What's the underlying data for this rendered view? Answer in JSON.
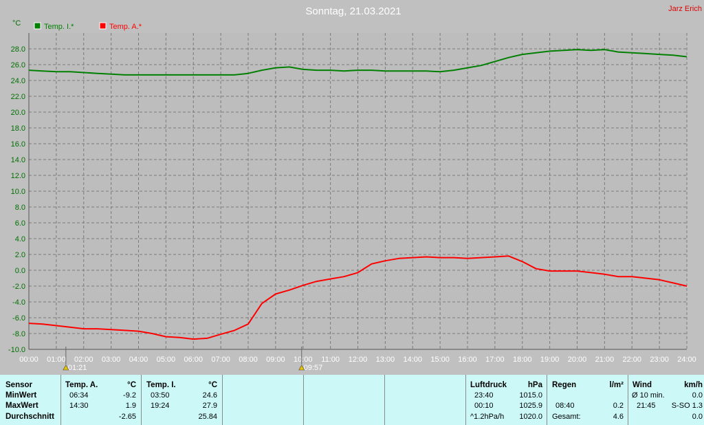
{
  "chart_data": {
    "type": "line",
    "title": "Sonntag, 21.03.2021",
    "author": "Jarz Erich",
    "ylabel": "°C",
    "ylim": [
      -10,
      30
    ],
    "yticks": [
      "28.0",
      "26.0",
      "24.0",
      "22.0",
      "20.0",
      "18.0",
      "16.0",
      "14.0",
      "12.0",
      "10.0",
      "8.0",
      "6.0",
      "4.0",
      "2.0",
      "0.0",
      "-2.0",
      "-4.0",
      "-6.0",
      "-8.0",
      "-10.0"
    ],
    "xlim": [
      0,
      24
    ],
    "xticks": [
      "00:00",
      "01:00",
      "02:00",
      "03:00",
      "04:00",
      "05:00",
      "06:00",
      "07:00",
      "08:00",
      "09:00",
      "10:00",
      "11:00",
      "12:00",
      "13:00",
      "14:00",
      "15:00",
      "16:00",
      "17:00",
      "18:00",
      "19:00",
      "20:00",
      "21:00",
      "22:00",
      "23:00",
      "24:00"
    ],
    "grid": true,
    "legend": "top-left",
    "markers": [
      {
        "time": 1.35,
        "label": "01:21"
      },
      {
        "time": 9.95,
        "label": "09:57"
      }
    ],
    "series": [
      {
        "name": "Temp. I.*",
        "color": "#008000",
        "x": [
          0,
          0.5,
          1,
          1.5,
          2,
          2.5,
          3,
          3.5,
          4,
          4.5,
          5,
          5.5,
          6,
          6.5,
          7,
          7.5,
          8,
          8.5,
          9,
          9.5,
          10,
          10.5,
          11,
          11.5,
          12,
          12.5,
          13,
          13.5,
          14,
          14.5,
          15,
          15.5,
          16,
          16.5,
          17,
          17.5,
          18,
          18.5,
          19,
          19.5,
          20,
          20.5,
          21,
          21.5,
          22,
          22.5,
          23,
          23.5,
          24
        ],
        "values": [
          25.3,
          25.2,
          25.1,
          25.1,
          25.0,
          24.9,
          24.8,
          24.7,
          24.7,
          24.7,
          24.7,
          24.7,
          24.7,
          24.7,
          24.7,
          24.7,
          24.9,
          25.3,
          25.6,
          25.7,
          25.4,
          25.3,
          25.3,
          25.2,
          25.3,
          25.3,
          25.2,
          25.2,
          25.2,
          25.2,
          25.1,
          25.3,
          25.6,
          25.9,
          26.4,
          26.9,
          27.3,
          27.5,
          27.7,
          27.8,
          27.9,
          27.8,
          27.9,
          27.6,
          27.5,
          27.4,
          27.3,
          27.2,
          27.0
        ]
      },
      {
        "name": "Temp. A.*",
        "color": "#ff0000",
        "x": [
          0,
          0.5,
          1,
          1.5,
          2,
          2.5,
          3,
          3.5,
          4,
          4.5,
          5,
          5.5,
          6,
          6.5,
          7,
          7.5,
          8,
          8.5,
          9,
          9.5,
          10,
          10.5,
          11,
          11.5,
          12,
          12.5,
          13,
          13.5,
          14,
          14.5,
          15,
          15.5,
          16,
          16.5,
          17,
          17.5,
          18,
          18.5,
          19,
          19.5,
          20,
          20.5,
          21,
          21.5,
          22,
          22.5,
          23,
          23.5,
          24
        ],
        "values": [
          -6.7,
          -6.8,
          -7.0,
          -7.2,
          -7.4,
          -7.4,
          -7.5,
          -7.6,
          -7.7,
          -8.0,
          -8.4,
          -8.5,
          -8.7,
          -8.6,
          -8.1,
          -7.6,
          -6.8,
          -4.2,
          -3.0,
          -2.5,
          -1.9,
          -1.4,
          -1.1,
          -0.8,
          -0.3,
          0.8,
          1.2,
          1.5,
          1.6,
          1.7,
          1.6,
          1.6,
          1.5,
          1.6,
          1.7,
          1.8,
          1.1,
          0.2,
          -0.1,
          -0.1,
          -0.1,
          -0.3,
          -0.5,
          -0.8,
          -0.8,
          -1.0,
          -1.2,
          -1.6,
          -2.0
        ]
      }
    ]
  },
  "table": {
    "headers": {
      "sensor": "Sensor",
      "tempA": "Temp. A.",
      "tempA_unit": "°C",
      "tempI": "Temp. I.",
      "tempI_unit": "°C",
      "pressure": "Luftdruck",
      "pressure_unit": "hPa",
      "rain": "Regen",
      "rain_unit": "l/m²",
      "wind": "Wind",
      "wind_unit": "km/h"
    },
    "rows": [
      {
        "label": "MinWert",
        "tA_time": "06:34",
        "tA_val": "-9.2",
        "tI_time": "03:50",
        "tI_val": "24.6",
        "p_time": "23:40",
        "p_val": "1015.0",
        "r_time": "",
        "r_val": "",
        "w_label": "Ø 10 min.",
        "w_val": "0.0"
      },
      {
        "label": "MaxWert",
        "tA_time": "14:30",
        "tA_val": "1.9",
        "tI_time": "19:24",
        "tI_val": "27.9",
        "p_time": "00:10",
        "p_val": "1025.9",
        "r_time": "08:40",
        "r_val": "0.2",
        "w_label": "21:45",
        "w_val": "S-SO 1.3"
      },
      {
        "label": "Durchschnitt",
        "tA_time": "",
        "tA_val": "-2.65",
        "tI_time": "",
        "tI_val": "25.84",
        "p_time": "^1.2hPa/h",
        "p_val": "1020.0",
        "r_time": "Gesamt:",
        "r_val": "4.6",
        "w_label": "",
        "w_val": "0.0"
      }
    ]
  }
}
